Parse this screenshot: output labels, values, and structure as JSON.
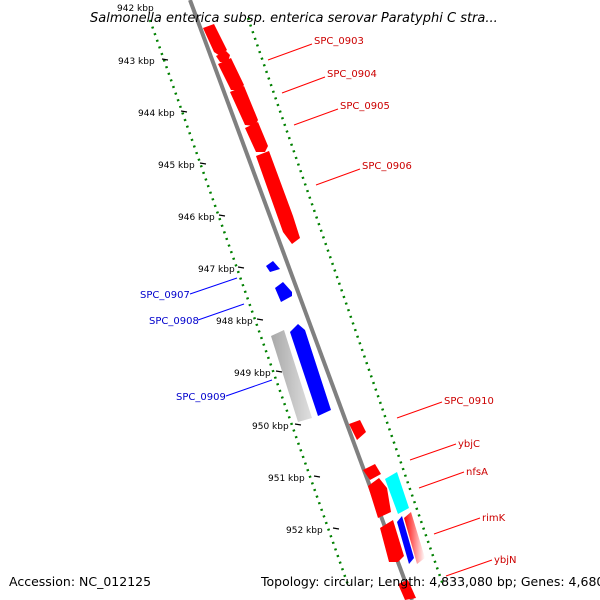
{
  "title": "Salmonella enterica subsp. enterica serovar Paratyphi C stra...",
  "footer": {
    "accession": "Accession: NC_012125",
    "stats": "Topology: circular; Length: 4,833,080 bp; Genes: 4,680"
  },
  "kbp_labels": [
    "942 kbp",
    "943 kbp",
    "944 kbp",
    "945 kbp",
    "946 kbp",
    "947 kbp",
    "948 kbp",
    "949 kbp",
    "950 kbp",
    "951 kbp",
    "952 kbp"
  ],
  "gene_labels": [
    "SPC_0903",
    "SPC_0904",
    "SPC_0905",
    "SPC_0906",
    "SPC_0907",
    "SPC_0908",
    "SPC_0909",
    "SPC_0910",
    "ybjC",
    "nfsA",
    "rimK",
    "ybjN"
  ],
  "colors": {
    "forward_gene": "#ff0000",
    "reverse_gene": "#0000ff",
    "rna_gene": "#00ffff",
    "other_gene": "#c0c0c0",
    "backbone": "#808080",
    "gc_ticks": "#008000",
    "right_ticks": "#008000"
  }
}
